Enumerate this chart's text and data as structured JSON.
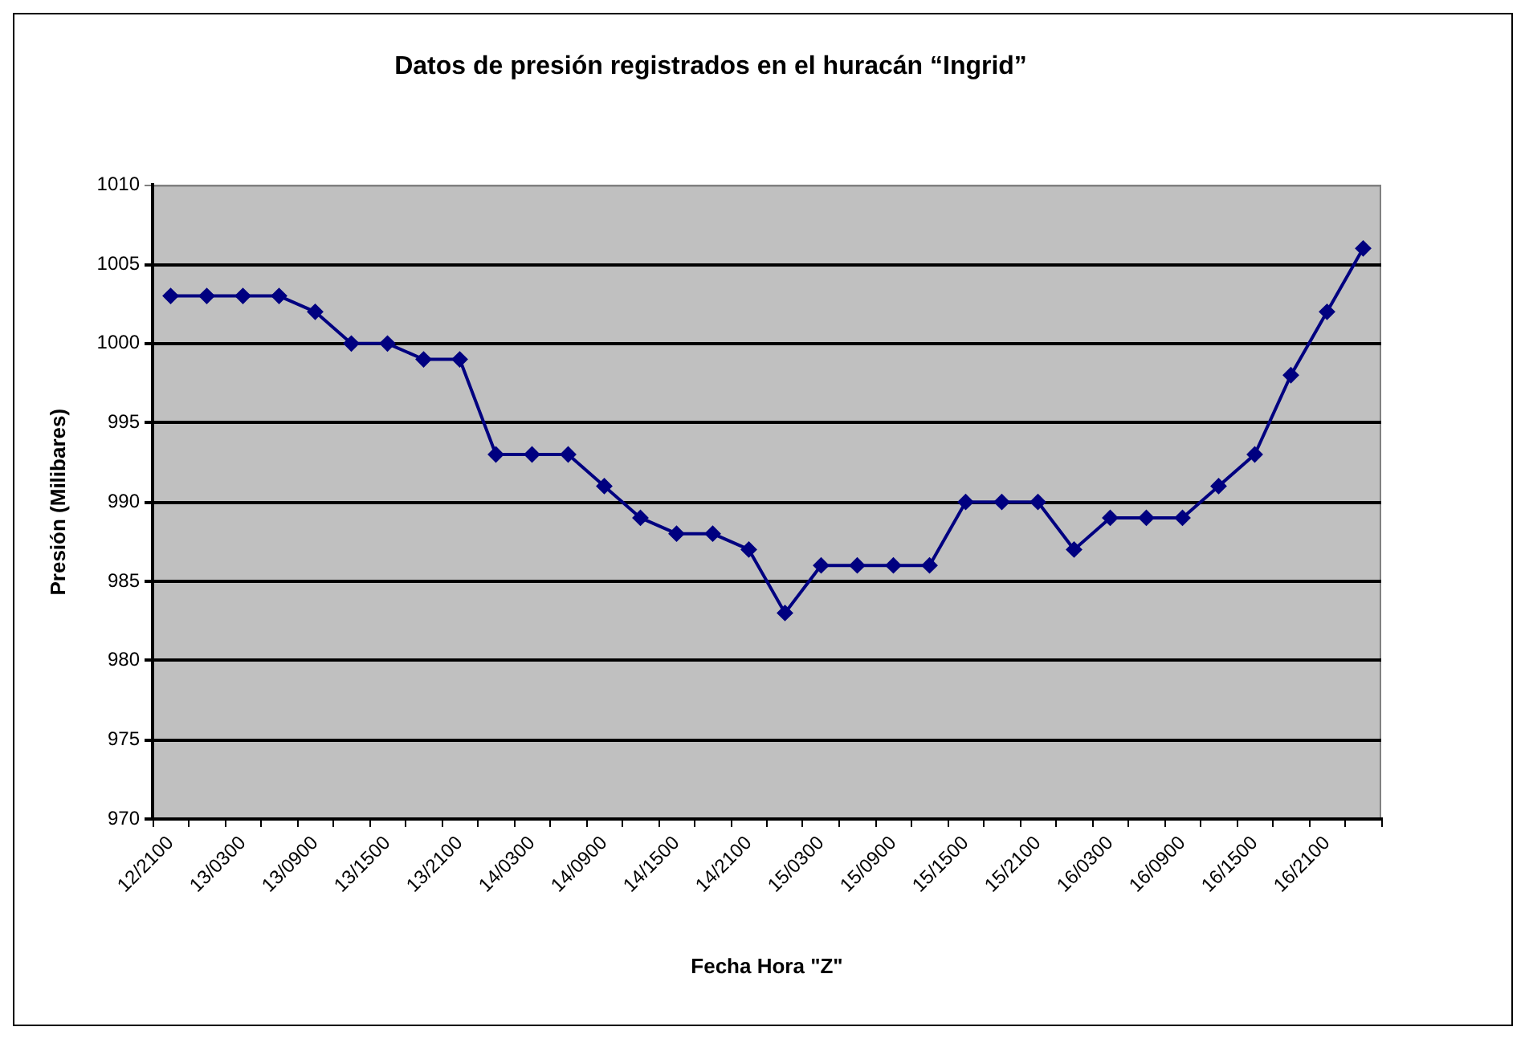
{
  "chart_data": {
    "type": "line",
    "title": "Datos de presión registrados en el huracán “Ingrid”",
    "xlabel": "Fecha Hora \"Z\"",
    "ylabel": "Presión (Milibares)",
    "categories": [
      "12/2100",
      null,
      "13/0300",
      null,
      "13/0900",
      null,
      "13/1500",
      null,
      "13/2100",
      null,
      "14/0300",
      null,
      "14/0900",
      null,
      "14/1500",
      null,
      "14/2100",
      null,
      "15/0300",
      null,
      "15/0900",
      null,
      "15/1500",
      null,
      "15/2100",
      null,
      "16/0300",
      null,
      "16/0900",
      null,
      "16/1500",
      null,
      "16/2100",
      null
    ],
    "series": [
      {
        "color": "#000080",
        "values": [
          1003,
          1003,
          1003,
          1003,
          1002,
          1000,
          1000,
          999,
          999,
          993,
          993,
          993,
          991,
          989,
          988,
          988,
          987,
          983,
          986,
          986,
          986,
          986,
          990,
          990,
          990,
          987,
          989,
          989,
          989,
          991,
          993,
          998,
          1002,
          1006
        ]
      }
    ],
    "ylim": [
      970,
      1010
    ],
    "yticks": [
      970,
      975,
      980,
      985,
      990,
      995,
      1000,
      1005,
      1010
    ],
    "grid": "y",
    "marker": "diamond",
    "line_style": "solid"
  }
}
